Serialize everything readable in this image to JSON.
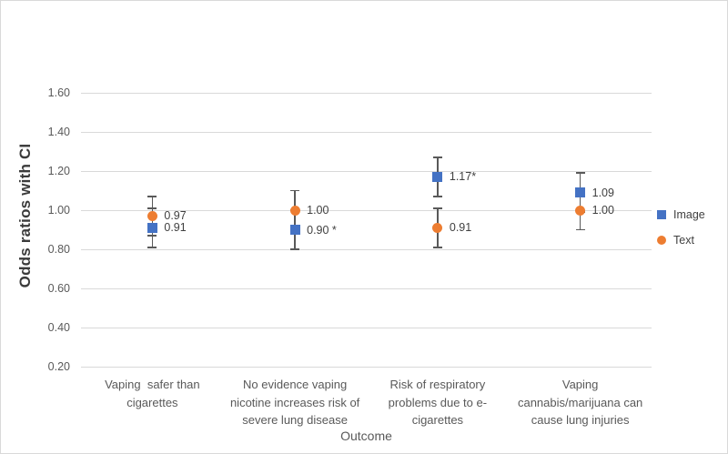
{
  "chart_data": {
    "type": "scatter",
    "title": "",
    "ylabel": "Odds ratios with CI",
    "xlabel": "Outcome",
    "ylim": [
      0.2,
      1.8
    ],
    "yticks": [
      "0.20",
      "0.40",
      "0.60",
      "0.80",
      "1.00",
      "1.20",
      "1.40",
      "1.60"
    ],
    "grid": true,
    "legend_position": "right",
    "categories": [
      "Vaping  safer than\ncigarettes",
      "No evidence vaping\nnicotine increases risk of\nsevere lung disease",
      "Risk of respiratory\nproblems due to e-\ncigarettes",
      "Vaping\ncannabis/marijuana can\ncause lung injuries"
    ],
    "series": [
      {
        "name": "Image",
        "marker": "square",
        "color": "#4472C4",
        "points": [
          {
            "value": 0.91,
            "ci_low": 0.81,
            "ci_high": 1.01,
            "label": "0.91"
          },
          {
            "value": 0.9,
            "ci_low": 0.8,
            "ci_high": 1.0,
            "label": "0.90 *"
          },
          {
            "value": 1.17,
            "ci_low": 1.07,
            "ci_high": 1.27,
            "label": "1.17*"
          },
          {
            "value": 1.09,
            "ci_low": 0.99,
            "ci_high": 1.19,
            "label": "1.09"
          }
        ]
      },
      {
        "name": "Text",
        "marker": "circle",
        "color": "#ED7D31",
        "points": [
          {
            "value": 0.97,
            "ci_low": 0.87,
            "ci_high": 1.07,
            "label": "0.97"
          },
          {
            "value": 1.0,
            "ci_low": 0.9,
            "ci_high": 1.1,
            "label": "1.00"
          },
          {
            "value": 0.91,
            "ci_low": 0.81,
            "ci_high": 1.01,
            "label": "0.91"
          },
          {
            "value": 1.0,
            "ci_low": 0.9,
            "ci_high": 1.1,
            "label": "1.00"
          }
        ]
      }
    ],
    "colors": {
      "gridline": "#d9d9d9",
      "errorbar": "#595959",
      "tick_label": "#595959",
      "data_label": "#404040",
      "y_axis_title": "#3b3b3b",
      "x_axis_title": "#595959",
      "category_label": "#595959",
      "legend_label": "#404040",
      "figure_border": "#d9d9d9"
    }
  }
}
